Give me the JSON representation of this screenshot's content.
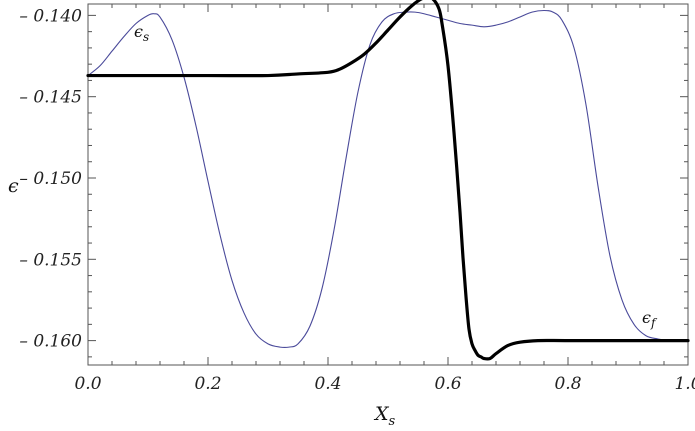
{
  "chart_data": {
    "type": "line",
    "title": "",
    "xlabel": "X",
    "xlabel_sub": "s",
    "ylabel": "ϵ",
    "xlim": [
      0.0,
      1.0
    ],
    "ylim": [
      -0.1615,
      -0.1393
    ],
    "xticks": [
      0.0,
      0.2,
      0.4,
      0.6,
      0.8,
      1.0
    ],
    "xtick_labels": [
      "0.0",
      "0.2",
      "0.4",
      "0.6",
      "0.8",
      "1.0"
    ],
    "yticks": [
      -0.16,
      -0.155,
      -0.15,
      -0.145,
      -0.14
    ],
    "ytick_labels": [
      "– 0.160",
      "– 0.155",
      "– 0.150",
      "– 0.145",
      "– 0.140"
    ],
    "grid": false,
    "legend": "none",
    "series": [
      {
        "label": "ϵ",
        "label_sub": "s",
        "color": "#4a4a9a",
        "x": [
          0.0,
          0.02,
          0.04,
          0.06,
          0.08,
          0.1,
          0.11,
          0.12,
          0.14,
          0.16,
          0.18,
          0.2,
          0.22,
          0.24,
          0.26,
          0.28,
          0.3,
          0.32,
          0.335,
          0.35,
          0.37,
          0.39,
          0.41,
          0.43,
          0.45,
          0.47,
          0.49,
          0.51,
          0.53,
          0.545,
          0.56,
          0.58,
          0.6,
          0.62,
          0.64,
          0.66,
          0.68,
          0.7,
          0.72,
          0.74,
          0.76,
          0.775,
          0.79,
          0.81,
          0.83,
          0.85,
          0.87,
          0.89,
          0.91,
          0.93,
          0.95,
          0.97,
          1.0
        ],
        "y": [
          -0.1437,
          -0.1431,
          -0.1422,
          -0.1413,
          -0.1405,
          -0.14,
          -0.1399,
          -0.1401,
          -0.1415,
          -0.1438,
          -0.1468,
          -0.1502,
          -0.1535,
          -0.1563,
          -0.1583,
          -0.1596,
          -0.1602,
          -0.1604,
          -0.1604,
          -0.1602,
          -0.1591,
          -0.1568,
          -0.1532,
          -0.1488,
          -0.1447,
          -0.1418,
          -0.1404,
          -0.1399,
          -0.1398,
          -0.1398,
          -0.1399,
          -0.1401,
          -0.1403,
          -0.1405,
          -0.1406,
          -0.1407,
          -0.1406,
          -0.1404,
          -0.1401,
          -0.1398,
          -0.1397,
          -0.1398,
          -0.1403,
          -0.142,
          -0.1455,
          -0.1505,
          -0.1548,
          -0.1575,
          -0.159,
          -0.1597,
          -0.1599,
          -0.16,
          -0.16
        ]
      },
      {
        "label": "ϵ",
        "label_sub": "f",
        "color": "#000000",
        "x": [
          0.0,
          0.1,
          0.2,
          0.3,
          0.35,
          0.4,
          0.42,
          0.44,
          0.46,
          0.48,
          0.5,
          0.52,
          0.54,
          0.555,
          0.565,
          0.575,
          0.585,
          0.59,
          0.6,
          0.61,
          0.62,
          0.625,
          0.63,
          0.635,
          0.64,
          0.645,
          0.65,
          0.655,
          0.66,
          0.67,
          0.68,
          0.7,
          0.72,
          0.75,
          0.8,
          0.9,
          1.0
        ],
        "y": [
          -0.1437,
          -0.1437,
          -0.1437,
          -0.1437,
          -0.1436,
          -0.1435,
          -0.1433,
          -0.1429,
          -0.1424,
          -0.1417,
          -0.1409,
          -0.1401,
          -0.1394,
          -0.139,
          -0.1389,
          -0.139,
          -0.1396,
          -0.1405,
          -0.1431,
          -0.1472,
          -0.1521,
          -0.1549,
          -0.1573,
          -0.1593,
          -0.1602,
          -0.1606,
          -0.1609,
          -0.161,
          -0.1611,
          -0.1611,
          -0.1608,
          -0.1603,
          -0.1601,
          -0.16,
          -0.16,
          -0.16,
          -0.16
        ]
      }
    ]
  }
}
